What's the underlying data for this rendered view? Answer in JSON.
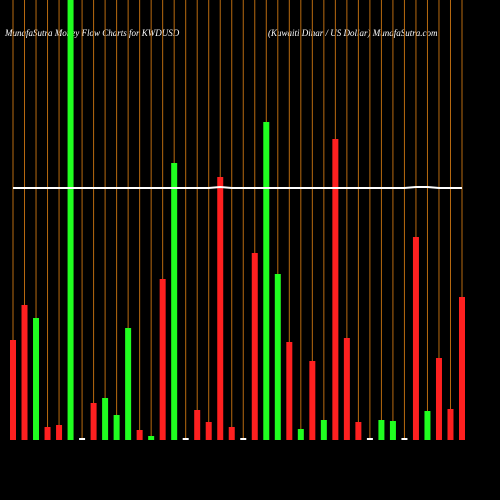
{
  "chart_data": {
    "type": "bar",
    "title": "MunafaSutra Money Flow Charts for KWDUSD",
    "subtitle": "(Kuwaiti  Dinar / US Dollar) MunafaSutra.com",
    "categories": [
      null,
      null,
      null,
      null,
      null,
      null,
      null,
      null,
      null,
      null,
      null,
      null,
      null,
      null,
      null,
      null,
      null,
      null,
      null,
      null,
      null,
      null,
      null,
      null,
      null,
      null,
      null,
      null,
      null,
      null,
      null,
      null,
      null,
      null,
      null,
      null,
      null,
      null,
      null,
      null
    ],
    "values": [
      100,
      135,
      122,
      13,
      15,
      440,
      2,
      37,
      42,
      25,
      112,
      10,
      4,
      161,
      277,
      2,
      30,
      18,
      263,
      13,
      2,
      187,
      318,
      166,
      98,
      11,
      79,
      20,
      301,
      102,
      18,
      2,
      20,
      19,
      2,
      203,
      29,
      82,
      31,
      143
    ],
    "colors": [
      "#ff2020",
      "#ff2020",
      "#20ff20",
      "#ff2020",
      "#ff2020",
      "#20ff20",
      "#ffffff",
      "#ff2020",
      "#20ff20",
      "#20ff20",
      "#20ff20",
      "#ff2020",
      "#20ff20",
      "#ff2020",
      "#20ff20",
      "#ffffff",
      "#ff2020",
      "#ff2020",
      "#ff2020",
      "#ff2020",
      "#ffffff",
      "#ff2020",
      "#20ff20",
      "#20ff20",
      "#ff2020",
      "#20ff20",
      "#ff2020",
      "#20ff20",
      "#ff2020",
      "#ff2020",
      "#ff2020",
      "#ffffff",
      "#20ff20",
      "#20ff20",
      "#ffffff",
      "#ff2020",
      "#20ff20",
      "#ff2020",
      "#ff2020",
      "#ff2020"
    ],
    "line": {
      "color": "#ffffff",
      "values": [
        252,
        252,
        252,
        252,
        252,
        252,
        252,
        252,
        252,
        252,
        252,
        252,
        252,
        252,
        252,
        252,
        252,
        252,
        253,
        252,
        252,
        252,
        252,
        252,
        252,
        252,
        252,
        252,
        252,
        252,
        252,
        252,
        252,
        252,
        252,
        253,
        253,
        252,
        252,
        252
      ]
    },
    "ylim": [
      0,
      440
    ],
    "grid_color": "#b86a10"
  }
}
